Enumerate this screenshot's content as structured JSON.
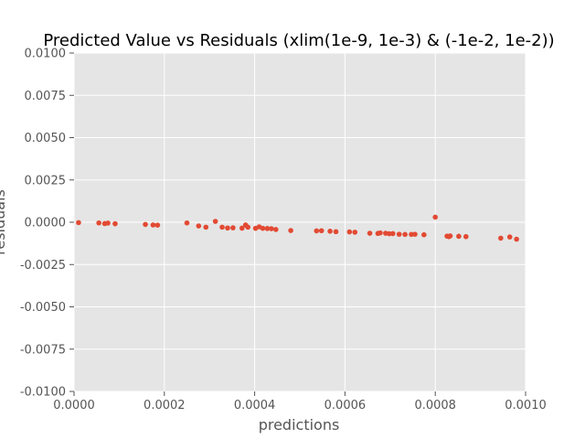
{
  "chart_data": {
    "type": "scatter",
    "title": "Predicted Value vs Residuals (xlim(1e-9, 1e-3) & (-1e-2, 1e-2))",
    "xlabel": "predictions",
    "ylabel": "residuals",
    "xlim": [
      0.0,
      0.001
    ],
    "ylim": [
      -0.01,
      0.01
    ],
    "xticks": [
      "0.0000",
      "0.0002",
      "0.0004",
      "0.0006",
      "0.0008",
      "0.0010"
    ],
    "yticks": [
      "-0.0100",
      "-0.0075",
      "-0.0050",
      "-0.0025",
      "0.0000",
      "0.0025",
      "0.0050",
      "0.0075",
      "0.0100"
    ],
    "grid": true,
    "background_color": "#e5e5e5",
    "grid_color": "#ffffff",
    "point_color": "#e24a33",
    "series": [
      {
        "points": [
          [
            1e-05,
            -2e-05
          ],
          [
            5.5e-05,
            -4e-05
          ],
          [
            6.8e-05,
            -8e-05
          ],
          [
            7.5e-05,
            -5e-05
          ],
          [
            9.1e-05,
            -9e-05
          ],
          [
            0.000158,
            -0.00013
          ],
          [
            0.000175,
            -0.00016
          ],
          [
            0.000185,
            -0.00017
          ],
          [
            0.00025,
            -4e-05
          ],
          [
            0.000276,
            -0.00022
          ],
          [
            0.000292,
            -0.00029
          ],
          [
            0.000313,
            5e-05
          ],
          [
            0.000328,
            -0.00029
          ],
          [
            0.00034,
            -0.00034
          ],
          [
            0.000352,
            -0.00033
          ],
          [
            0.000372,
            -0.00035
          ],
          [
            0.00038,
            -0.00016
          ],
          [
            0.000385,
            -0.00029
          ],
          [
            0.000402,
            -0.00036
          ],
          [
            0.00041,
            -0.00027
          ],
          [
            0.000418,
            -0.00036
          ],
          [
            0.000428,
            -0.00037
          ],
          [
            0.000437,
            -0.00038
          ],
          [
            0.000447,
            -0.00043
          ],
          [
            0.00048,
            -0.00049
          ],
          [
            0.000537,
            -0.00051
          ],
          [
            0.000548,
            -0.0005
          ],
          [
            0.000567,
            -0.00053
          ],
          [
            0.00058,
            -0.00056
          ],
          [
            0.00061,
            -0.00057
          ],
          [
            0.000622,
            -0.00059
          ],
          [
            0.000655,
            -0.00065
          ],
          [
            0.000673,
            -0.00066
          ],
          [
            0.000678,
            -0.00063
          ],
          [
            0.00069,
            -0.00065
          ],
          [
            0.000698,
            -0.00068
          ],
          [
            0.000706,
            -0.00067
          ],
          [
            0.00072,
            -0.00071
          ],
          [
            0.000733,
            -0.00072
          ],
          [
            0.000747,
            -0.00072
          ],
          [
            0.000755,
            -0.00071
          ],
          [
            0.000775,
            -0.00074
          ],
          [
            0.0008,
            0.0003
          ],
          [
            0.000826,
            -0.00082
          ],
          [
            0.00083,
            -0.00085
          ],
          [
            0.000833,
            -0.00081
          ],
          [
            0.000852,
            -0.00083
          ],
          [
            0.000868,
            -0.00085
          ],
          [
            0.000945,
            -0.00094
          ],
          [
            0.000965,
            -0.00087
          ],
          [
            0.00098,
            -0.001
          ]
        ]
      }
    ]
  }
}
